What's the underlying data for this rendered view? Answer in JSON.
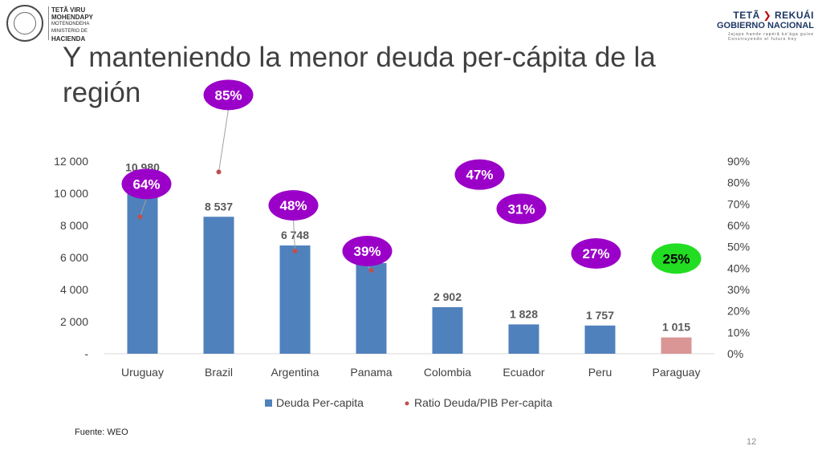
{
  "header": {
    "left_logo": {
      "line1": "TETÃ VIRU",
      "line2": "MOHENDAPY",
      "line3": "MOTENONDEHA",
      "line4": "MINISTERIO DE",
      "line5": "HACIENDA"
    },
    "right_logo": {
      "line1a": "TETÃ",
      "line1b": "REKUÁI",
      "line2": "GOBIERNO NACIONAL",
      "line3": "Jajapo hande rapérã ko'ága guive",
      "line4": "Construyendo el futuro hoy"
    }
  },
  "slide": {
    "title": "Y manteniendo la menor deuda per-cápita de la región",
    "source": "Fuente: WEO",
    "page_number": "12"
  },
  "chart_data": {
    "type": "bar",
    "categories": [
      "Uruguay",
      "Brazil",
      "Argentina",
      "Panama",
      "Colombia",
      "Ecuador",
      "Peru",
      "Paraguay"
    ],
    "series": [
      {
        "name": "Deuda Per-capita",
        "type": "bar",
        "axis": "left",
        "values": [
          10980,
          8537,
          6748,
          5649,
          2902,
          1828,
          1757,
          1015
        ],
        "labels": [
          "10 980",
          "8 537",
          "6 748",
          "5 649",
          "2 902",
          "1 828",
          "1 757",
          "1 015"
        ],
        "color": "#4f81bd",
        "highlight_color": "#d99694"
      },
      {
        "name": "Ratio Deuda/PIB Per-capita",
        "type": "scatter",
        "axis": "right",
        "values": [
          64,
          85,
          48,
          39,
          47,
          31,
          27,
          25
        ],
        "labels": [
          "64%",
          "85%",
          "48%",
          "39%",
          "47%",
          "31%",
          "27%",
          "25%"
        ],
        "color": "#c0504d",
        "bubble_color": "#9b00c8",
        "highlight_bubble_color": "#22dd22"
      }
    ],
    "left_axis": {
      "ylim": [
        0,
        12000
      ],
      "ticks": [
        "-",
        "2 000",
        "4 000",
        "6 000",
        "8 000",
        "10 000",
        "12 000"
      ]
    },
    "right_axis": {
      "ylim": [
        0,
        90
      ],
      "ticks": [
        "0%",
        "10%",
        "20%",
        "30%",
        "40%",
        "50%",
        "60%",
        "70%",
        "80%",
        "90%"
      ]
    },
    "legend_placement": "bottom",
    "grid": false
  }
}
